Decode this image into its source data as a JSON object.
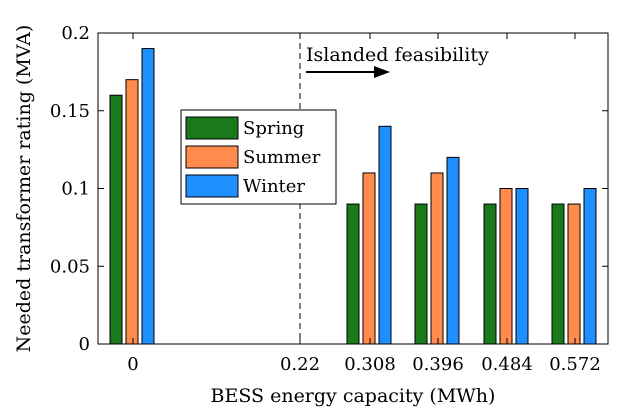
{
  "chart_data": {
    "type": "bar",
    "title": "",
    "xlabel": "BESS energy capacity (MWh)",
    "ylabel": "Needed transformer rating (MVA)",
    "ylim": [
      0,
      0.2
    ],
    "yticks": [
      "0",
      "0.05",
      "0.1",
      "0.15",
      "0.2"
    ],
    "ytick_values": [
      0,
      0.05,
      0.1,
      0.15,
      0.2
    ],
    "categories": [
      "0",
      "0.22",
      "0.308",
      "0.396",
      "0.484",
      "0.572"
    ],
    "series": [
      {
        "name": "Spring",
        "color": "#1a7a1a",
        "values": [
          0.16,
          null,
          0.09,
          0.09,
          0.09,
          0.09
        ]
      },
      {
        "name": "Summer",
        "color": "#ff8c4d",
        "values": [
          0.17,
          null,
          0.11,
          0.11,
          0.1,
          0.09
        ]
      },
      {
        "name": "Winter",
        "color": "#1e8fff",
        "values": [
          0.19,
          null,
          0.14,
          0.12,
          0.1,
          0.1
        ]
      }
    ],
    "threshold": {
      "category": "0.22",
      "style": "dashed"
    },
    "annotation": {
      "text": "Islanded feasibility",
      "arrow": "right"
    },
    "legend_position": "upper-left-center",
    "grid": false
  }
}
